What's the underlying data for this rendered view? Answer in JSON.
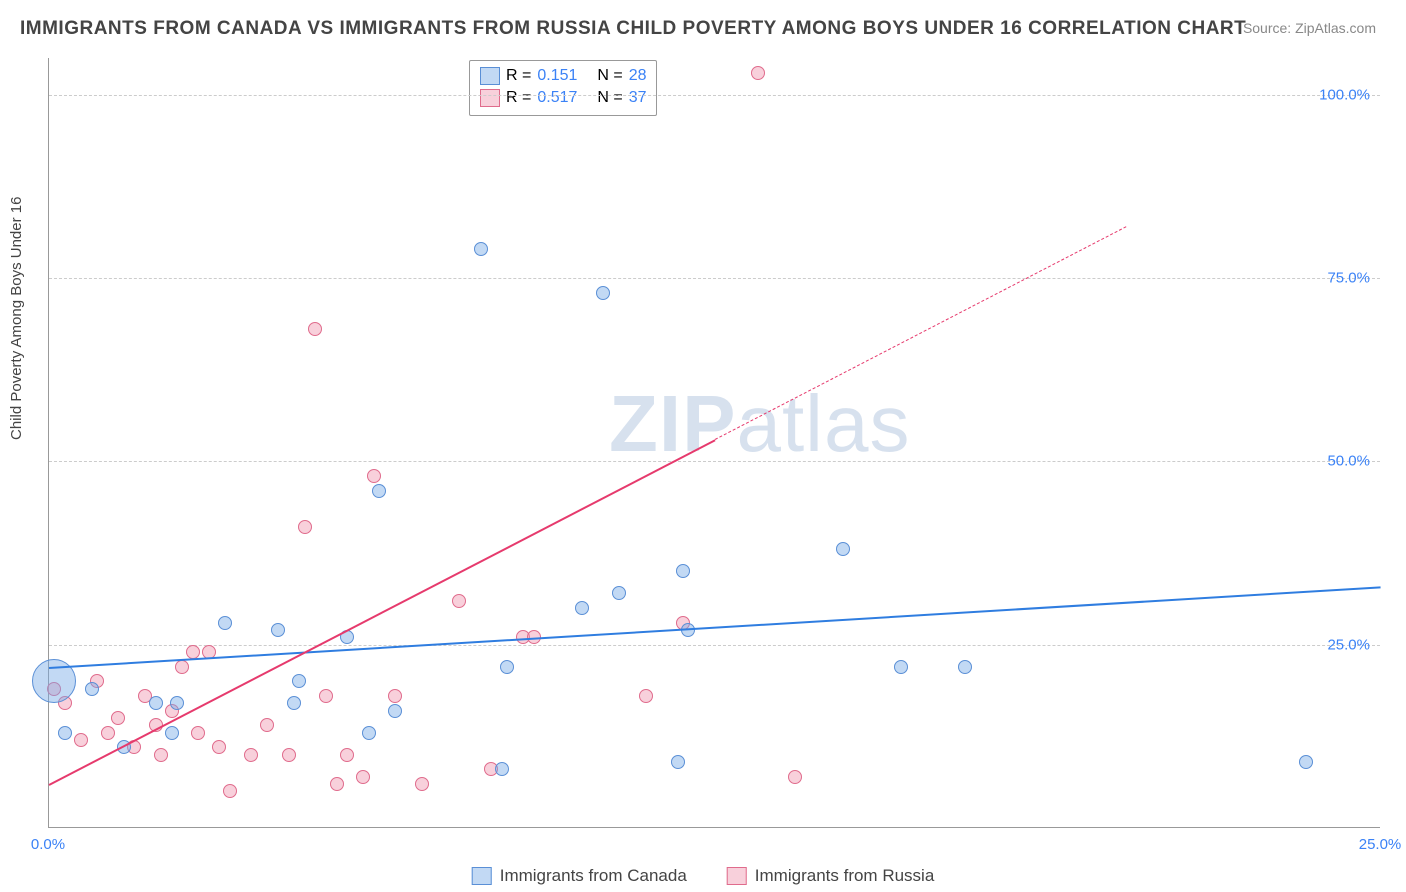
{
  "title": "IMMIGRANTS FROM CANADA VS IMMIGRANTS FROM RUSSIA CHILD POVERTY AMONG BOYS UNDER 16 CORRELATION CHART",
  "source_prefix": "Source: ",
  "source_name": "ZipAtlas.com",
  "ylabel": "Child Poverty Among Boys Under 16",
  "watermark_bold": "ZIP",
  "watermark_rest": "atlas",
  "chart": {
    "type": "scatter",
    "xlim": [
      0,
      25
    ],
    "ylim": [
      0,
      105
    ],
    "xticks": [
      0,
      25
    ],
    "xtick_labels": [
      "0.0%",
      "25.0%"
    ],
    "yticks": [
      25,
      50,
      75,
      100
    ],
    "ytick_labels": [
      "25.0%",
      "50.0%",
      "75.0%",
      "100.0%"
    ],
    "grid_color": "#cccccc",
    "background_color": "#ffffff",
    "axis_color": "#999999",
    "tick_label_color": "#3b82f6",
    "tick_label_fontsize": 15
  },
  "series": {
    "canada": {
      "label": "Immigrants from Canada",
      "fill": "rgba(120,170,230,0.45)",
      "stroke": "#5a8fd6",
      "line_color": "#2f7de0",
      "line_width": 2.5,
      "r_value": "0.151",
      "n_value": "28",
      "trend": {
        "y_at_x0": 22,
        "y_at_xmax": 33,
        "dashed": false
      },
      "points": [
        {
          "x": 0.1,
          "y": 20,
          "r": 22
        },
        {
          "x": 0.3,
          "y": 13,
          "r": 7
        },
        {
          "x": 0.8,
          "y": 19,
          "r": 7
        },
        {
          "x": 1.4,
          "y": 11,
          "r": 7
        },
        {
          "x": 2.0,
          "y": 17,
          "r": 7
        },
        {
          "x": 2.3,
          "y": 13,
          "r": 7
        },
        {
          "x": 2.4,
          "y": 17,
          "r": 7
        },
        {
          "x": 3.3,
          "y": 28,
          "r": 7
        },
        {
          "x": 4.3,
          "y": 27,
          "r": 7
        },
        {
          "x": 4.6,
          "y": 17,
          "r": 7
        },
        {
          "x": 4.7,
          "y": 20,
          "r": 7
        },
        {
          "x": 5.6,
          "y": 26,
          "r": 7
        },
        {
          "x": 6.0,
          "y": 13,
          "r": 7
        },
        {
          "x": 6.2,
          "y": 46,
          "r": 7
        },
        {
          "x": 6.5,
          "y": 16,
          "r": 7
        },
        {
          "x": 8.1,
          "y": 79,
          "r": 7
        },
        {
          "x": 8.5,
          "y": 8,
          "r": 7
        },
        {
          "x": 8.6,
          "y": 22,
          "r": 7
        },
        {
          "x": 10.0,
          "y": 30,
          "r": 7
        },
        {
          "x": 10.4,
          "y": 73,
          "r": 7
        },
        {
          "x": 10.7,
          "y": 32,
          "r": 7
        },
        {
          "x": 12.0,
          "y": 27,
          "r": 7
        },
        {
          "x": 11.8,
          "y": 9,
          "r": 7
        },
        {
          "x": 11.9,
          "y": 35,
          "r": 7
        },
        {
          "x": 14.9,
          "y": 38,
          "r": 7
        },
        {
          "x": 16.0,
          "y": 22,
          "r": 7
        },
        {
          "x": 17.2,
          "y": 22,
          "r": 7
        },
        {
          "x": 23.6,
          "y": 9,
          "r": 7
        }
      ]
    },
    "russia": {
      "label": "Immigrants from Russia",
      "fill": "rgba(240,150,175,0.45)",
      "stroke": "#e06b8c",
      "line_color": "#e63a6d",
      "line_width": 2,
      "r_value": "0.517",
      "n_value": "37",
      "trend": {
        "y_at_x0": 6,
        "y_at_xmax": 100,
        "dashed_from_x": 12.5
      },
      "points": [
        {
          "x": 0.1,
          "y": 19,
          "r": 7
        },
        {
          "x": 0.3,
          "y": 17,
          "r": 7
        },
        {
          "x": 0.6,
          "y": 12,
          "r": 7
        },
        {
          "x": 0.9,
          "y": 20,
          "r": 7
        },
        {
          "x": 1.1,
          "y": 13,
          "r": 7
        },
        {
          "x": 1.3,
          "y": 15,
          "r": 7
        },
        {
          "x": 1.6,
          "y": 11,
          "r": 7
        },
        {
          "x": 1.8,
          "y": 18,
          "r": 7
        },
        {
          "x": 2.0,
          "y": 14,
          "r": 7
        },
        {
          "x": 2.1,
          "y": 10,
          "r": 7
        },
        {
          "x": 2.3,
          "y": 16,
          "r": 7
        },
        {
          "x": 2.5,
          "y": 22,
          "r": 7
        },
        {
          "x": 2.7,
          "y": 24,
          "r": 7
        },
        {
          "x": 2.8,
          "y": 13,
          "r": 7
        },
        {
          "x": 3.0,
          "y": 24,
          "r": 7
        },
        {
          "x": 3.2,
          "y": 11,
          "r": 7
        },
        {
          "x": 3.4,
          "y": 5,
          "r": 7
        },
        {
          "x": 3.8,
          "y": 10,
          "r": 7
        },
        {
          "x": 4.1,
          "y": 14,
          "r": 7
        },
        {
          "x": 4.5,
          "y": 10,
          "r": 7
        },
        {
          "x": 4.8,
          "y": 41,
          "r": 7
        },
        {
          "x": 5.0,
          "y": 68,
          "r": 7
        },
        {
          "x": 5.2,
          "y": 18,
          "r": 7
        },
        {
          "x": 5.4,
          "y": 6,
          "r": 7
        },
        {
          "x": 5.6,
          "y": 10,
          "r": 7
        },
        {
          "x": 5.9,
          "y": 7,
          "r": 7
        },
        {
          "x": 6.1,
          "y": 48,
          "r": 7
        },
        {
          "x": 6.5,
          "y": 18,
          "r": 7
        },
        {
          "x": 7.0,
          "y": 6,
          "r": 7
        },
        {
          "x": 7.7,
          "y": 31,
          "r": 7
        },
        {
          "x": 8.3,
          "y": 8,
          "r": 7
        },
        {
          "x": 8.9,
          "y": 26,
          "r": 7
        },
        {
          "x": 9.1,
          "y": 26,
          "r": 7
        },
        {
          "x": 11.2,
          "y": 18,
          "r": 7
        },
        {
          "x": 11.9,
          "y": 28,
          "r": 7
        },
        {
          "x": 13.3,
          "y": 103,
          "r": 7
        },
        {
          "x": 14.0,
          "y": 7,
          "r": 7
        }
      ]
    }
  },
  "legend_top": {
    "r_label": "R =",
    "n_label": "N ="
  }
}
